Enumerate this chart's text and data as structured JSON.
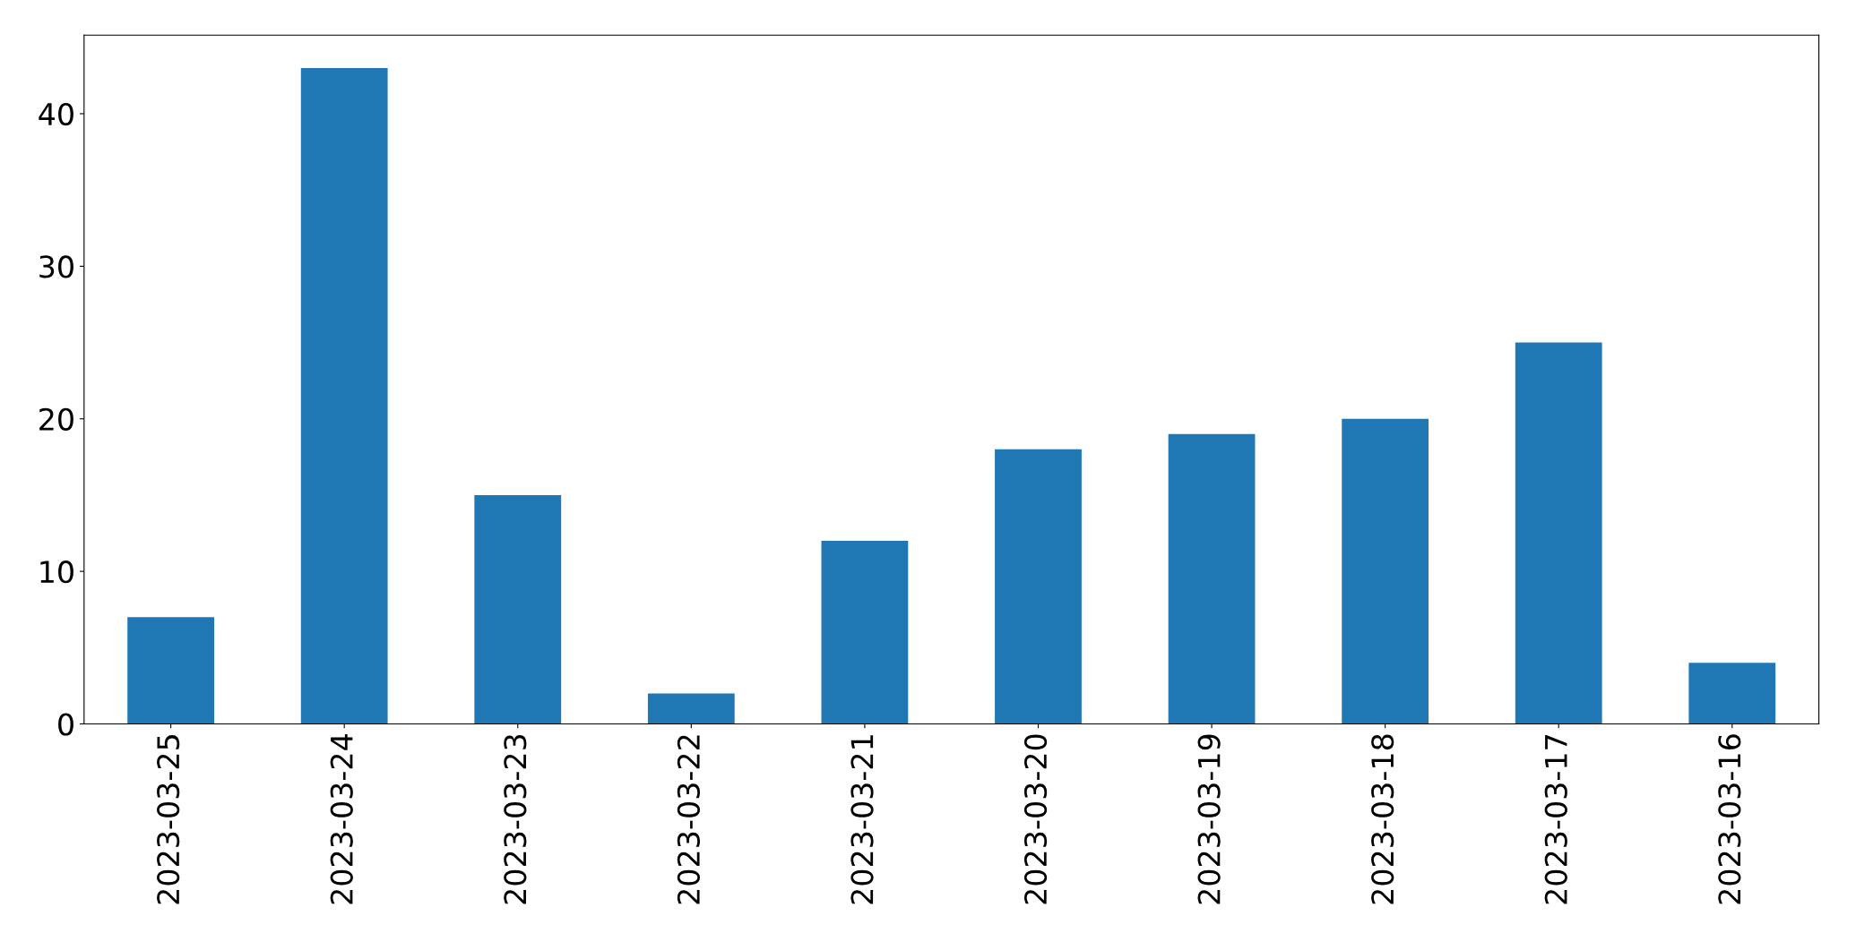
{
  "chart_data": {
    "type": "bar",
    "categories": [
      "2023-03-25",
      "2023-03-24",
      "2023-03-23",
      "2023-03-22",
      "2023-03-21",
      "2023-03-20",
      "2023-03-19",
      "2023-03-18",
      "2023-03-17",
      "2023-03-16"
    ],
    "values": [
      7,
      43,
      15,
      2,
      12,
      18,
      19,
      20,
      25,
      4
    ],
    "color": "#1f77b4",
    "ylim": [
      0,
      45.15
    ],
    "yticks": [
      0,
      10,
      20,
      30,
      40
    ],
    "grid": false,
    "legend": false
  }
}
